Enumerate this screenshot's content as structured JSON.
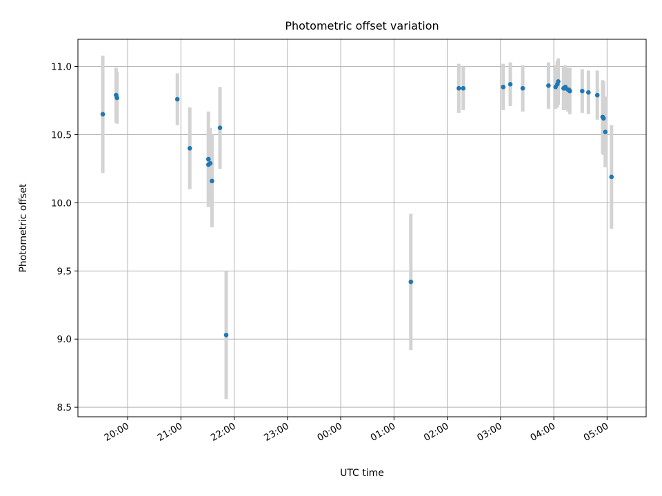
{
  "chart_data": {
    "type": "scatter",
    "title": "Photometric offset variation",
    "xlabel": "UTC time",
    "ylabel": "Photometric offset",
    "x_unit": "hours past 00:00 UTC (times after midnight are on the following day)",
    "xlim": [
      "19:04",
      "05:44"
    ],
    "ylim": [
      8.43,
      11.2
    ],
    "grid": true,
    "x_ticks": [
      "20:00",
      "21:00",
      "22:00",
      "23:00",
      "00:00",
      "01:00",
      "02:00",
      "03:00",
      "04:00",
      "05:00"
    ],
    "y_ticks": [
      "8.5",
      "9.0",
      "9.5",
      "10.0",
      "10.5",
      "11.0"
    ],
    "colors": {
      "points": "#1f77b4",
      "error_bars": "#d3d3d3",
      "grid": "#b0b0b0"
    },
    "points": [
      {
        "t": "19:32",
        "y": 10.65,
        "err": 0.43
      },
      {
        "t": "19:47",
        "y": 10.79,
        "err": 0.2
      },
      {
        "t": "19:48",
        "y": 10.77,
        "err": 0.19
      },
      {
        "t": "20:56",
        "y": 10.76,
        "err": 0.19
      },
      {
        "t": "21:10",
        "y": 10.4,
        "err": 0.3
      },
      {
        "t": "21:31",
        "y": 10.32,
        "err": 0.35
      },
      {
        "t": "21:31",
        "y": 10.28,
        "err": 0.26
      },
      {
        "t": "21:33",
        "y": 10.29,
        "err": 0.26
      },
      {
        "t": "21:35",
        "y": 10.16,
        "err": 0.34
      },
      {
        "t": "21:44",
        "y": 10.55,
        "err": 0.3
      },
      {
        "t": "21:51",
        "y": 9.03,
        "err": 0.47
      },
      {
        "t": "01:19",
        "y": 9.42,
        "err": 0.5
      },
      {
        "t": "02:13",
        "y": 10.84,
        "err": 0.18
      },
      {
        "t": "02:18",
        "y": 10.84,
        "err": 0.16
      },
      {
        "t": "03:03",
        "y": 10.85,
        "err": 0.17
      },
      {
        "t": "03:11",
        "y": 10.87,
        "err": 0.16
      },
      {
        "t": "03:25",
        "y": 10.84,
        "err": 0.17
      },
      {
        "t": "03:54",
        "y": 10.86,
        "err": 0.17
      },
      {
        "t": "04:02",
        "y": 10.85,
        "err": 0.16
      },
      {
        "t": "04:04",
        "y": 10.87,
        "err": 0.17
      },
      {
        "t": "04:05",
        "y": 10.89,
        "err": 0.17
      },
      {
        "t": "04:11",
        "y": 10.84,
        "err": 0.16
      },
      {
        "t": "04:12",
        "y": 10.84,
        "err": 0.16
      },
      {
        "t": "04:13",
        "y": 10.85,
        "err": 0.16
      },
      {
        "t": "04:16",
        "y": 10.83,
        "err": 0.16
      },
      {
        "t": "04:17",
        "y": 10.83,
        "err": 0.16
      },
      {
        "t": "04:18",
        "y": 10.82,
        "err": 0.17
      },
      {
        "t": "04:32",
        "y": 10.82,
        "err": 0.16
      },
      {
        "t": "04:39",
        "y": 10.81,
        "err": 0.16
      },
      {
        "t": "04:49",
        "y": 10.79,
        "err": 0.18
      },
      {
        "t": "04:55",
        "y": 10.63,
        "err": 0.27
      },
      {
        "t": "04:56",
        "y": 10.62,
        "err": 0.27
      },
      {
        "t": "04:58",
        "y": 10.52,
        "err": 0.26
      },
      {
        "t": "05:05",
        "y": 10.19,
        "err": 0.38
      }
    ]
  }
}
